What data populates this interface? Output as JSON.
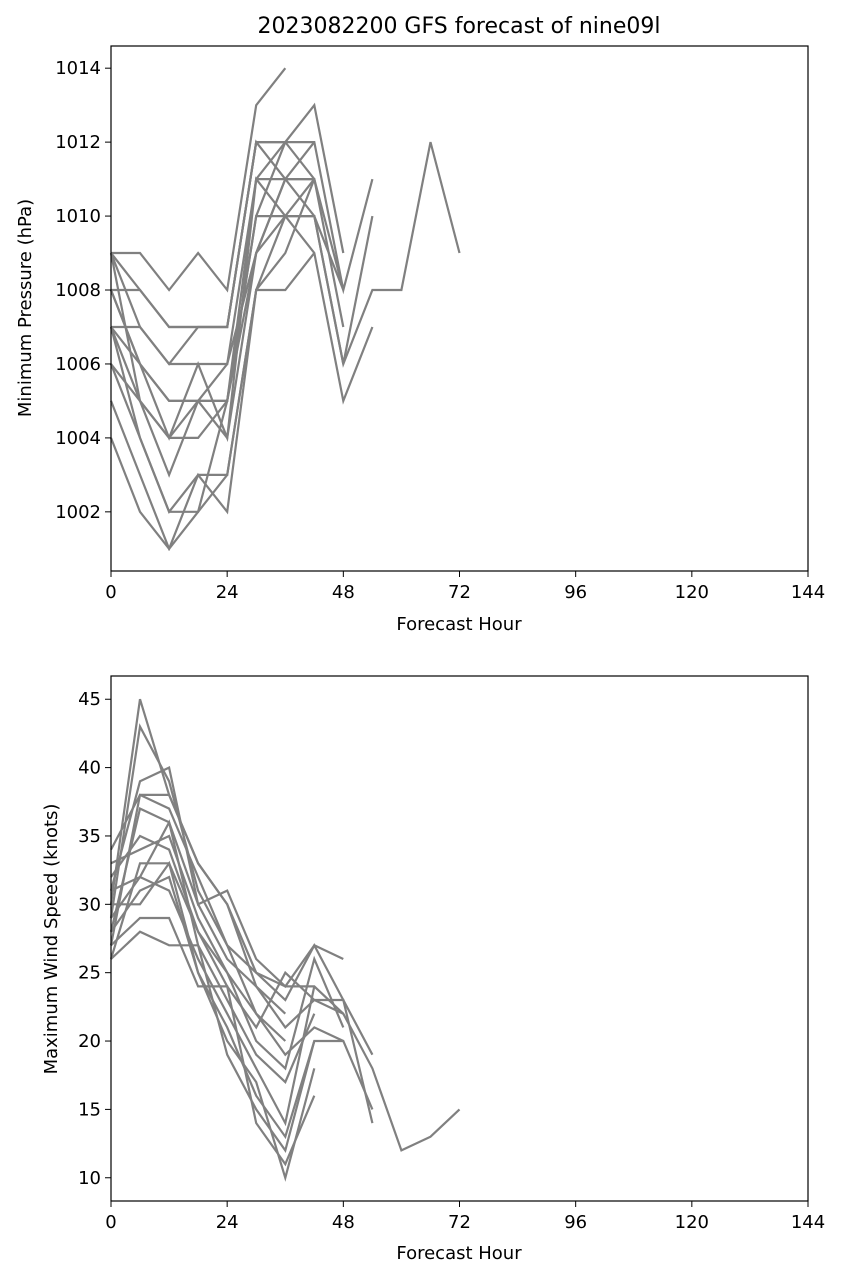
{
  "figure": {
    "title": "2023082200 GFS forecast of nine09l"
  },
  "chart_data": [
    {
      "type": "line",
      "title": "2023082200 GFS forecast of nine09l",
      "xlabel": "Forecast Hour",
      "ylabel": "Minimum Pressure (hPa)",
      "xlim": [
        0,
        144
      ],
      "ylim": [
        1000.4,
        1014.6
      ],
      "xticks": [
        0,
        24,
        48,
        72,
        96,
        120,
        144
      ],
      "yticks": [
        1002,
        1004,
        1006,
        1008,
        1010,
        1012,
        1014
      ],
      "grid": false,
      "line_color": "#808080",
      "series": [
        {
          "x": [
            0,
            6,
            12,
            18,
            24,
            30,
            36
          ],
          "values": [
            1009,
            1009,
            1008,
            1009,
            1008,
            1013,
            1014
          ]
        },
        {
          "x": [
            0,
            6,
            12,
            18,
            24,
            30,
            36,
            42,
            48
          ],
          "values": [
            1009,
            1008,
            1007,
            1007,
            1007,
            1012,
            1012,
            1013,
            1009
          ]
        },
        {
          "x": [
            0,
            6,
            12,
            18,
            24,
            30,
            36,
            42,
            48
          ],
          "values": [
            1008,
            1008,
            1007,
            1007,
            1007,
            1012,
            1012,
            1012,
            1008
          ]
        },
        {
          "x": [
            0,
            6,
            12,
            18,
            24,
            30,
            36,
            42,
            48
          ],
          "values": [
            1009,
            1007,
            1006,
            1006,
            1006,
            1011,
            1012,
            1011,
            1007
          ]
        },
        {
          "x": [
            0,
            6,
            12,
            18,
            24,
            30,
            36,
            42,
            48,
            54
          ],
          "values": [
            1007,
            1007,
            1006,
            1007,
            1007,
            1012,
            1011,
            1011,
            1008,
            1011
          ]
        },
        {
          "x": [
            0,
            6,
            12,
            18,
            24,
            30,
            36,
            42,
            48,
            54
          ],
          "values": [
            1008,
            1006,
            1005,
            1005,
            1005,
            1011,
            1011,
            1010,
            1006,
            1010
          ]
        },
        {
          "x": [
            0,
            6,
            12,
            18,
            24,
            30,
            36,
            42,
            48,
            54,
            60,
            66,
            72
          ],
          "values": [
            1007,
            1006,
            1005,
            1005,
            1005,
            1010,
            1010,
            1010,
            1006,
            1008,
            1008,
            1012,
            1009
          ]
        },
        {
          "x": [
            0,
            6,
            12,
            18,
            24,
            30,
            36,
            42,
            48,
            54
          ],
          "values": [
            1006,
            1005,
            1004,
            1005,
            1004,
            1011,
            1010,
            1009,
            1005,
            1007
          ]
        },
        {
          "x": [
            0,
            6,
            12,
            18,
            24,
            30,
            36,
            42,
            48
          ],
          "values": [
            1007,
            1005,
            1004,
            1004,
            1005,
            1009,
            1010,
            1010,
            1008
          ]
        },
        {
          "x": [
            0,
            6,
            12,
            18,
            24,
            30,
            36,
            42
          ],
          "values": [
            1009,
            1005,
            1003,
            1005,
            1006,
            1009,
            1011,
            1012
          ]
        },
        {
          "x": [
            0,
            6,
            12,
            18,
            24,
            30,
            36,
            42
          ],
          "values": [
            1006,
            1004,
            1002,
            1003,
            1003,
            1008,
            1009,
            1011
          ]
        },
        {
          "x": [
            0,
            6,
            12,
            18,
            24,
            30,
            36,
            42
          ],
          "values": [
            1005,
            1003,
            1001,
            1002,
            1003,
            1008,
            1010,
            1011
          ]
        },
        {
          "x": [
            0,
            6,
            12,
            18,
            24,
            30,
            36,
            42
          ],
          "values": [
            1004,
            1002,
            1001,
            1003,
            1002,
            1008,
            1008,
            1009
          ]
        },
        {
          "x": [
            0,
            6,
            12,
            18,
            24,
            30,
            36,
            42
          ],
          "values": [
            1008,
            1006,
            1004,
            1006,
            1004,
            1009,
            1011,
            1011
          ]
        },
        {
          "x": [
            0,
            6,
            12,
            18,
            24,
            30,
            36
          ],
          "values": [
            1007,
            1004,
            1002,
            1002,
            1005,
            1010,
            1012
          ]
        }
      ]
    },
    {
      "type": "line",
      "title": "",
      "xlabel": "Forecast Hour",
      "ylabel": "Maximum Wind Speed (knots)",
      "xlim": [
        0,
        144
      ],
      "ylim": [
        8.3,
        46.7
      ],
      "xticks": [
        0,
        24,
        48,
        72,
        96,
        120,
        144
      ],
      "yticks": [
        10,
        15,
        20,
        25,
        30,
        35,
        40,
        45
      ],
      "grid": false,
      "line_color": "#808080",
      "series": [
        {
          "x": [
            0,
            6,
            12,
            18,
            24,
            30,
            36
          ],
          "values": [
            30,
            45,
            38,
            33,
            30,
            24,
            22
          ]
        },
        {
          "x": [
            0,
            6,
            12,
            18,
            24,
            30,
            36
          ],
          "values": [
            29,
            43,
            39,
            31,
            27,
            22,
            20
          ]
        },
        {
          "x": [
            0,
            6,
            12,
            18,
            24,
            30,
            36,
            42,
            48
          ],
          "values": [
            31,
            39,
            40,
            30,
            31,
            26,
            24,
            27,
            26
          ]
        },
        {
          "x": [
            0,
            6,
            12,
            18,
            24,
            30,
            36,
            42,
            48
          ],
          "values": [
            27,
            38,
            38,
            33,
            30,
            25,
            24,
            24,
            22
          ]
        },
        {
          "x": [
            0,
            6,
            12,
            18,
            24,
            30,
            36,
            42,
            48,
            54
          ],
          "values": [
            34,
            38,
            37,
            32,
            27,
            25,
            23,
            27,
            23,
            19
          ]
        },
        {
          "x": [
            0,
            6,
            12,
            18,
            24,
            30,
            36,
            42,
            48,
            54
          ],
          "values": [
            28,
            37,
            36,
            30,
            26,
            24,
            21,
            23,
            23,
            14
          ]
        },
        {
          "x": [
            0,
            6,
            12,
            18,
            24,
            30,
            36,
            42,
            48,
            54,
            60,
            66,
            72
          ],
          "values": [
            32,
            35,
            34,
            28,
            24,
            21,
            25,
            23,
            22,
            18,
            12,
            13,
            15
          ]
        },
        {
          "x": [
            0,
            6,
            12,
            18,
            24,
            30,
            36,
            42,
            48,
            54
          ],
          "values": [
            33,
            34,
            35,
            29,
            25,
            22,
            19,
            21,
            20,
            15
          ]
        },
        {
          "x": [
            0,
            6,
            12,
            18,
            24,
            30,
            36,
            42,
            48
          ],
          "values": [
            26,
            33,
            33,
            28,
            25,
            20,
            18,
            26,
            21
          ]
        },
        {
          "x": [
            0,
            6,
            12,
            18,
            24,
            30,
            36,
            42
          ],
          "values": [
            31,
            32,
            36,
            27,
            23,
            19,
            17,
            22
          ]
        },
        {
          "x": [
            0,
            6,
            12,
            18,
            24,
            30,
            36,
            42
          ],
          "values": [
            29,
            32,
            31,
            26,
            22,
            18,
            14,
            24
          ]
        },
        {
          "x": [
            0,
            6,
            12,
            18,
            24,
            30,
            36,
            42
          ],
          "values": [
            30,
            30,
            33,
            25,
            21,
            16,
            13,
            20
          ]
        },
        {
          "x": [
            0,
            6,
            12,
            18,
            24,
            30,
            36,
            42
          ],
          "values": [
            27,
            29,
            29,
            24,
            24,
            14,
            11,
            16
          ]
        },
        {
          "x": [
            0,
            6,
            12,
            18,
            24,
            30,
            36,
            42,
            48
          ],
          "values": [
            26,
            28,
            27,
            27,
            19,
            15,
            12,
            20,
            20
          ]
        },
        {
          "x": [
            0,
            6,
            12,
            18,
            24,
            30,
            36,
            42
          ],
          "values": [
            28,
            31,
            32,
            25,
            20,
            17,
            10,
            18
          ]
        }
      ]
    }
  ]
}
